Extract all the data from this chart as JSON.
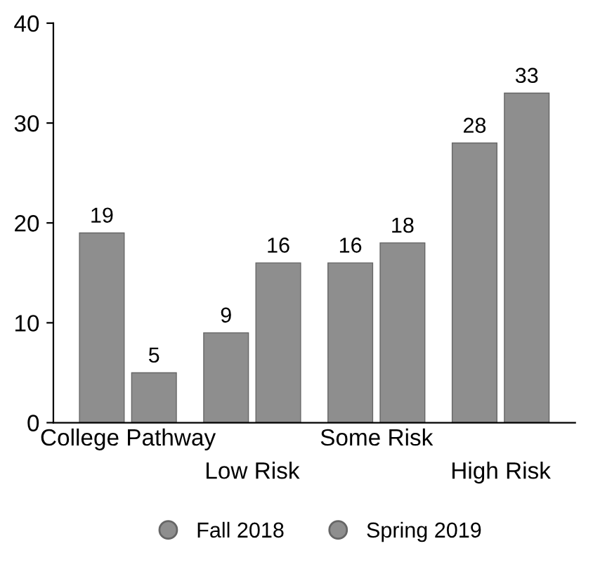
{
  "chart_data": {
    "type": "bar",
    "categories": [
      "College Pathway",
      "Low Risk",
      "Some Risk",
      "High Risk"
    ],
    "series": [
      {
        "name": "Fall 2018",
        "color": "#8e8e8e",
        "values": [
          19,
          9,
          16,
          28
        ]
      },
      {
        "name": "Spring 2019",
        "color": "#8e8e8e",
        "values": [
          5,
          16,
          18,
          33
        ]
      }
    ],
    "ylim": [
      0,
      40
    ],
    "yticks": [
      0,
      10,
      20,
      30,
      40
    ],
    "data_labels": true,
    "grid": false,
    "legend": "bottom"
  }
}
